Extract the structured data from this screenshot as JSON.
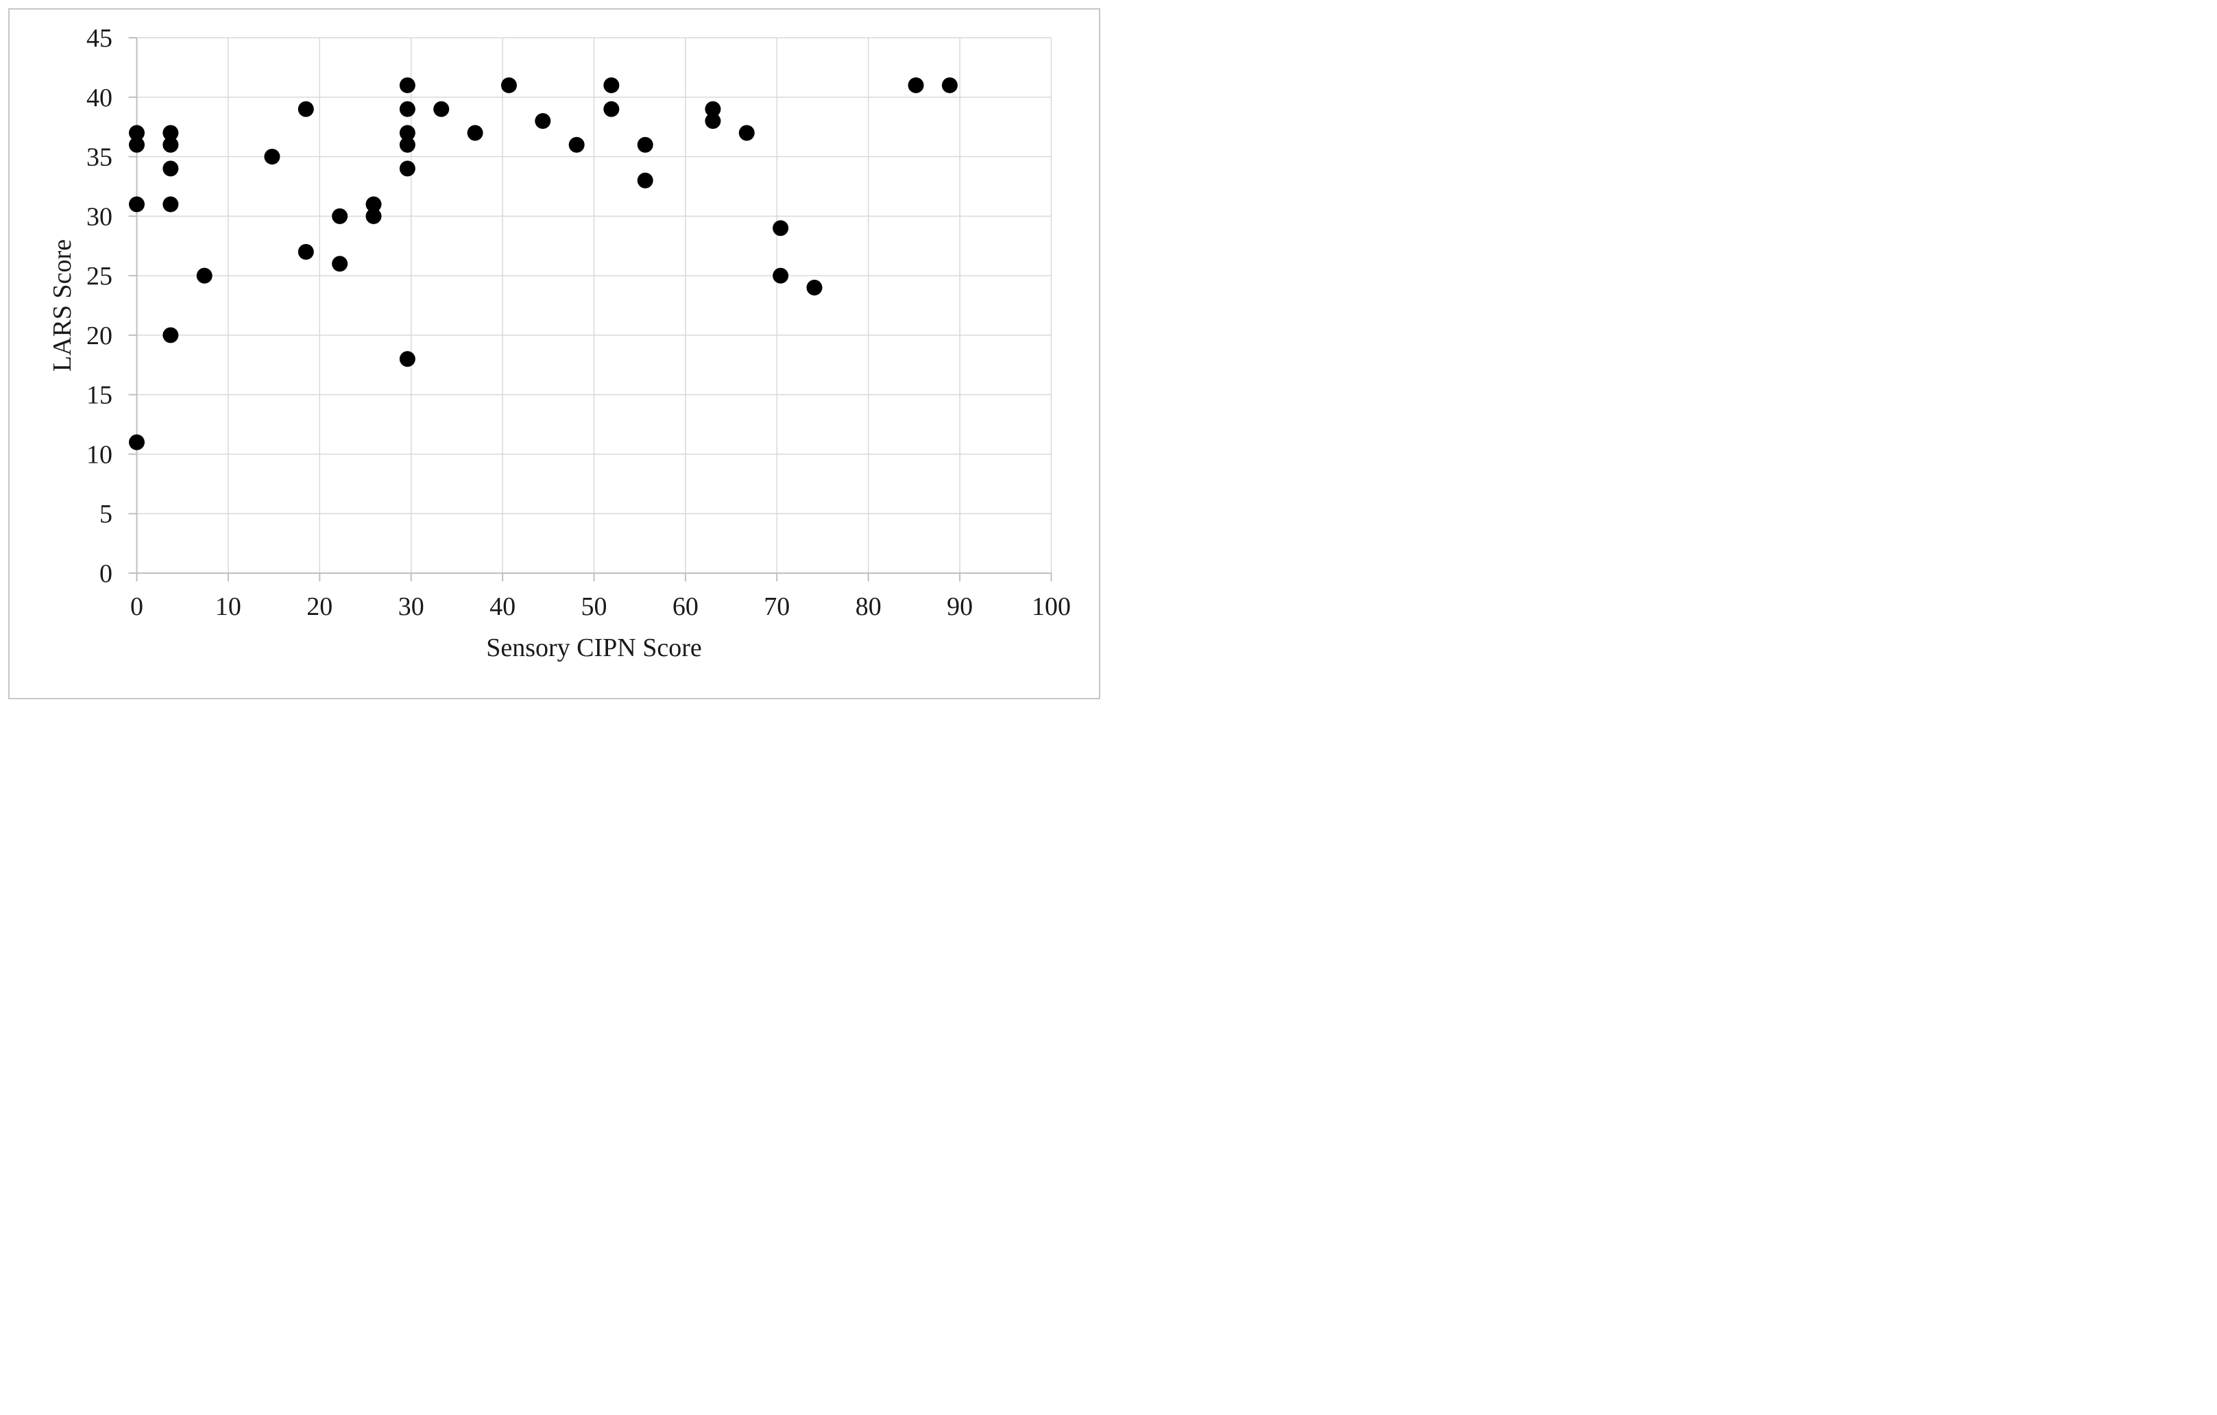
{
  "figure": {
    "background": "#ffffff",
    "border_color": "#c6c6c6"
  },
  "chart_data": {
    "type": "scatter",
    "title": "",
    "xlabel": "Sensory CIPN Score",
    "ylabel": "LARS Score",
    "xlim": [
      0,
      100
    ],
    "ylim": [
      0,
      45
    ],
    "xticks": [
      0,
      10,
      20,
      30,
      40,
      50,
      60,
      70,
      80,
      90,
      100
    ],
    "yticks": [
      0,
      5,
      10,
      15,
      20,
      25,
      30,
      35,
      40,
      45
    ],
    "grid": true,
    "legend_position": "none",
    "marker": {
      "shape": "circle",
      "color": "#000000",
      "radius_px": 11.5
    },
    "colors": {
      "gridline": "#d9d9d9",
      "axis_line": "#bfbfbf",
      "tick_label": "#1a1a1a",
      "title": "#1a1a1a"
    },
    "points": [
      [
        0,
        37
      ],
      [
        0,
        36
      ],
      [
        0,
        31
      ],
      [
        0,
        11
      ],
      [
        3.7,
        37
      ],
      [
        3.7,
        36
      ],
      [
        3.7,
        34
      ],
      [
        3.7,
        31
      ],
      [
        3.7,
        20
      ],
      [
        7.4,
        25
      ],
      [
        14.8,
        35
      ],
      [
        18.5,
        39
      ],
      [
        18.5,
        27
      ],
      [
        22.2,
        30
      ],
      [
        22.2,
        26
      ],
      [
        25.9,
        31
      ],
      [
        25.9,
        30
      ],
      [
        29.6,
        41
      ],
      [
        29.6,
        39
      ],
      [
        29.6,
        37
      ],
      [
        29.6,
        36
      ],
      [
        29.6,
        34
      ],
      [
        29.6,
        18
      ],
      [
        33.3,
        39
      ],
      [
        37.0,
        37
      ],
      [
        40.7,
        41
      ],
      [
        44.4,
        38
      ],
      [
        48.1,
        36
      ],
      [
        51.9,
        41
      ],
      [
        51.9,
        39
      ],
      [
        55.6,
        36
      ],
      [
        55.6,
        33
      ],
      [
        63.0,
        39
      ],
      [
        63.0,
        38
      ],
      [
        66.7,
        37
      ],
      [
        70.4,
        29
      ],
      [
        70.4,
        25
      ],
      [
        74.1,
        24
      ],
      [
        85.2,
        41
      ],
      [
        88.9,
        41
      ]
    ]
  }
}
